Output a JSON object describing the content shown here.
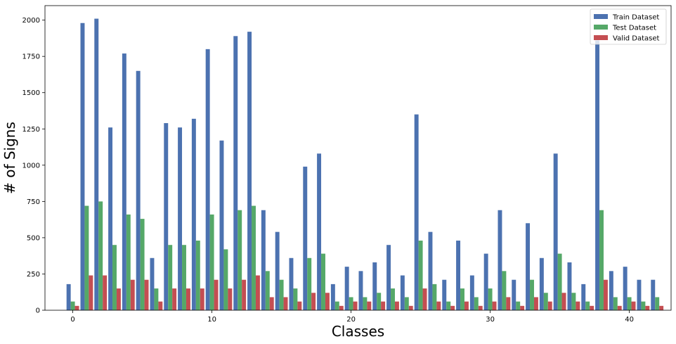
{
  "chart_data": {
    "type": "bar",
    "xlabel": "Classes",
    "ylabel": "# of Signs",
    "xlim": [
      -2,
      43
    ],
    "ylim": [
      0,
      2100
    ],
    "xticks": [
      0,
      10,
      20,
      30,
      40
    ],
    "yticks": [
      0,
      250,
      500,
      750,
      1000,
      1250,
      1500,
      1750,
      2000
    ],
    "grid": false,
    "legend_position": "top-right",
    "x": [
      0,
      1,
      2,
      3,
      4,
      5,
      6,
      7,
      8,
      9,
      10,
      11,
      12,
      13,
      14,
      15,
      16,
      17,
      18,
      19,
      20,
      21,
      22,
      23,
      24,
      25,
      26,
      27,
      28,
      29,
      30,
      31,
      32,
      33,
      34,
      35,
      36,
      37,
      38,
      39,
      40,
      41,
      42
    ],
    "series": [
      {
        "name": "Train Dataset",
        "color": "#4c72b0",
        "values": [
          180,
          1980,
          2010,
          1260,
          1770,
          1650,
          360,
          1290,
          1260,
          1320,
          1800,
          1170,
          1890,
          1920,
          690,
          540,
          360,
          990,
          1080,
          180,
          300,
          270,
          330,
          450,
          240,
          1350,
          540,
          210,
          480,
          240,
          390,
          690,
          210,
          600,
          360,
          1080,
          330,
          180,
          1860,
          270,
          300,
          210,
          210
        ]
      },
      {
        "name": "Test Dataset",
        "color": "#55a868",
        "values": [
          60,
          720,
          750,
          450,
          660,
          630,
          150,
          450,
          450,
          480,
          660,
          420,
          690,
          720,
          270,
          210,
          150,
          360,
          390,
          60,
          90,
          90,
          120,
          150,
          90,
          480,
          180,
          60,
          150,
          90,
          150,
          270,
          60,
          210,
          120,
          390,
          120,
          60,
          690,
          90,
          90,
          60,
          90
        ]
      },
      {
        "name": "Valid Dataset",
        "color": "#c44e52",
        "values": [
          30,
          240,
          240,
          150,
          210,
          210,
          60,
          150,
          150,
          150,
          210,
          150,
          210,
          240,
          90,
          90,
          60,
          120,
          120,
          30,
          60,
          60,
          60,
          60,
          30,
          150,
          60,
          30,
          60,
          30,
          60,
          90,
          30,
          90,
          60,
          120,
          60,
          30,
          210,
          30,
          60,
          30,
          30
        ]
      }
    ]
  }
}
